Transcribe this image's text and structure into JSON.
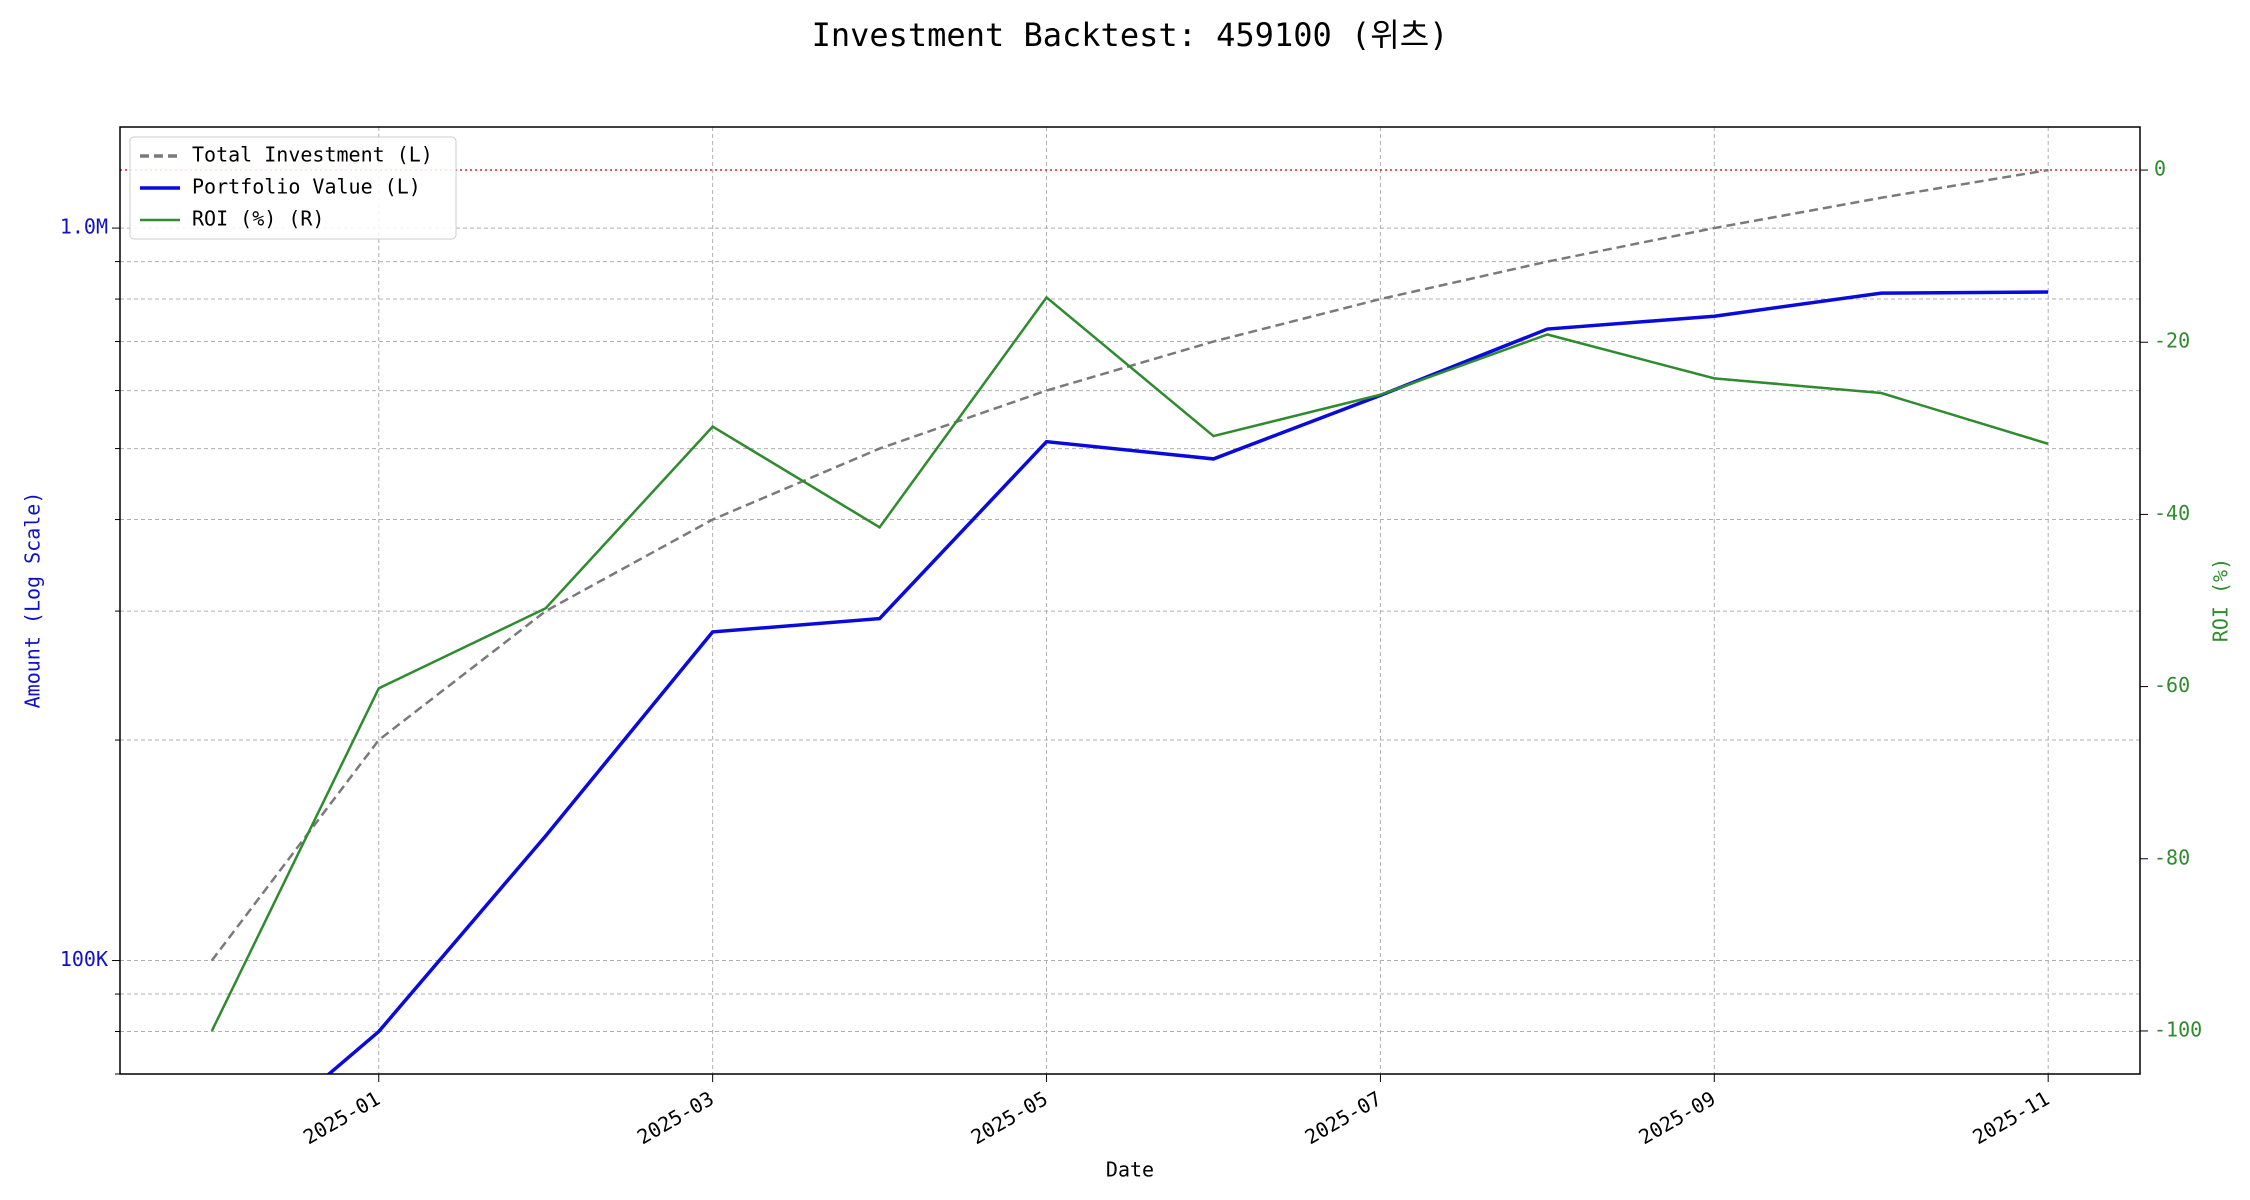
{
  "chart_data": {
    "type": "line",
    "title": "Investment Backtest: 459100 (위츠)",
    "xlabel": "Date",
    "ylabel": "Amount (Log Scale)",
    "y2label": "ROI (%)",
    "x": [
      "2024-12",
      "2025-01",
      "2025-02",
      "2025-03",
      "2025-04",
      "2025-05",
      "2025-06",
      "2025-07",
      "2025-08",
      "2025-09",
      "2025-10",
      "2025-11"
    ],
    "xticks": [
      "2025-01",
      "2025-03",
      "2025-05",
      "2025-07",
      "2025-09",
      "2025-11"
    ],
    "ylog": true,
    "ylim": [
      70000,
      1374000
    ],
    "yticks": [
      {
        "value": 100000,
        "label": "100K"
      },
      {
        "value": 1000000,
        "label": "1.0M"
      }
    ],
    "yminorticks": [
      70000,
      80000,
      90000,
      200000,
      300000,
      400000,
      500000,
      600000,
      700000,
      800000,
      900000
    ],
    "y2lim": [
      -105,
      5
    ],
    "y2ticks": [
      -100,
      -80,
      -60,
      -40,
      -20,
      0
    ],
    "y2_reference": 0,
    "reference_color": "#e02020",
    "grid": true,
    "legend": "upper left",
    "ylabel_color": "#1010cc",
    "y2label_color": "#2e8b2e",
    "series": [
      {
        "name": "Total Investment (L)",
        "color": "#7a7a7a",
        "dashed": true,
        "values": [
          100000,
          200000,
          300000,
          400000,
          500000,
          600000,
          700000,
          800000,
          900000,
          1000000,
          1100000,
          1200000
        ]
      },
      {
        "name": "Portfolio Value (L)",
        "color": "#0a0adc",
        "values": [
          0,
          80000,
          148000,
          281000,
          293000,
          511000,
          484000,
          591000,
          728000,
          758000,
          815000,
          818000
        ]
      },
      {
        "name": "ROI (%) (R)",
        "color": "#2e8b2e",
        "axis": "y2",
        "values": [
          -100,
          -60.2,
          -50.9,
          -29.8,
          -41.5,
          -14.8,
          -30.9,
          -26.1,
          -19.1,
          -24.2,
          -25.9,
          -31.8
        ]
      }
    ]
  }
}
